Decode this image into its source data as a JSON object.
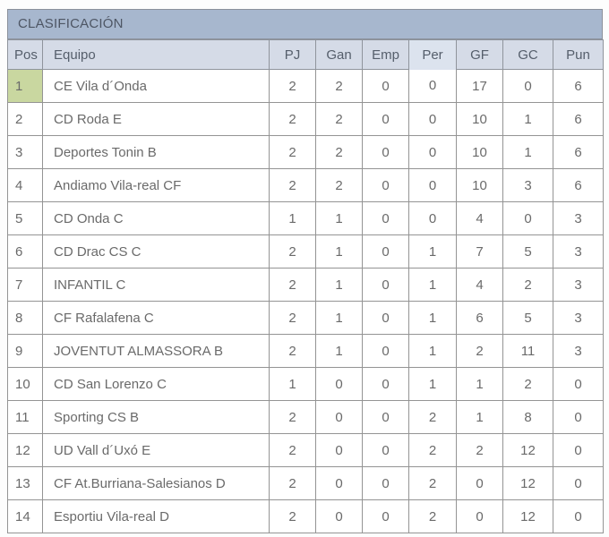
{
  "table": {
    "title": "CLASIFICACIÓN",
    "sorted_column": "per",
    "columns": [
      {
        "key": "pos",
        "label": "Pos"
      },
      {
        "key": "equipo",
        "label": "Equipo"
      },
      {
        "key": "pj",
        "label": "PJ"
      },
      {
        "key": "gan",
        "label": "Gan"
      },
      {
        "key": "emp",
        "label": "Emp"
      },
      {
        "key": "per",
        "label": "Per"
      },
      {
        "key": "gf",
        "label": "GF"
      },
      {
        "key": "gc",
        "label": "GC"
      },
      {
        "key": "pun",
        "label": "Pun"
      }
    ],
    "rows": [
      {
        "pos": 1,
        "equipo": "CE Vila d´Onda",
        "pj": 2,
        "gan": 2,
        "emp": 0,
        "per": 0,
        "gf": 17,
        "gc": 0,
        "pun": 6,
        "highlight": true
      },
      {
        "pos": 2,
        "equipo": "CD Roda E",
        "pj": 2,
        "gan": 2,
        "emp": 0,
        "per": 0,
        "gf": 10,
        "gc": 1,
        "pun": 6,
        "highlight": false
      },
      {
        "pos": 3,
        "equipo": "Deportes Tonin B",
        "pj": 2,
        "gan": 2,
        "emp": 0,
        "per": 0,
        "gf": 10,
        "gc": 1,
        "pun": 6,
        "highlight": false
      },
      {
        "pos": 4,
        "equipo": "Andiamo Vila-real CF",
        "pj": 2,
        "gan": 2,
        "emp": 0,
        "per": 0,
        "gf": 10,
        "gc": 3,
        "pun": 6,
        "highlight": false
      },
      {
        "pos": 5,
        "equipo": "CD Onda C",
        "pj": 1,
        "gan": 1,
        "emp": 0,
        "per": 0,
        "gf": 4,
        "gc": 0,
        "pun": 3,
        "highlight": false
      },
      {
        "pos": 6,
        "equipo": "CD Drac CS C",
        "pj": 2,
        "gan": 1,
        "emp": 0,
        "per": 1,
        "gf": 7,
        "gc": 5,
        "pun": 3,
        "highlight": false
      },
      {
        "pos": 7,
        "equipo": "INFANTIL C",
        "pj": 2,
        "gan": 1,
        "emp": 0,
        "per": 1,
        "gf": 4,
        "gc": 2,
        "pun": 3,
        "highlight": false
      },
      {
        "pos": 8,
        "equipo": "CF Rafalafena C",
        "pj": 2,
        "gan": 1,
        "emp": 0,
        "per": 1,
        "gf": 6,
        "gc": 5,
        "pun": 3,
        "highlight": false
      },
      {
        "pos": 9,
        "equipo": "JOVENTUT ALMASSORA B",
        "pj": 2,
        "gan": 1,
        "emp": 0,
        "per": 1,
        "gf": 2,
        "gc": 11,
        "pun": 3,
        "highlight": false
      },
      {
        "pos": 10,
        "equipo": "CD San Lorenzo C",
        "pj": 1,
        "gan": 0,
        "emp": 0,
        "per": 1,
        "gf": 1,
        "gc": 2,
        "pun": 0,
        "highlight": false
      },
      {
        "pos": 11,
        "equipo": "Sporting CS B",
        "pj": 2,
        "gan": 0,
        "emp": 0,
        "per": 2,
        "gf": 1,
        "gc": 8,
        "pun": 0,
        "highlight": false
      },
      {
        "pos": 12,
        "equipo": "UD Vall d´Uxó E",
        "pj": 2,
        "gan": 0,
        "emp": 0,
        "per": 2,
        "gf": 2,
        "gc": 12,
        "pun": 0,
        "highlight": false
      },
      {
        "pos": 13,
        "equipo": "CF At.Burriana-Salesianos D",
        "pj": 2,
        "gan": 0,
        "emp": 0,
        "per": 2,
        "gf": 0,
        "gc": 12,
        "pun": 0,
        "highlight": false
      },
      {
        "pos": 14,
        "equipo": "Esportiu Vila-real D",
        "pj": 2,
        "gan": 0,
        "emp": 0,
        "per": 2,
        "gf": 0,
        "gc": 12,
        "pun": 0,
        "highlight": false
      }
    ],
    "colors": {
      "title_bg": "#a7b7ce",
      "header_bg": "#d5dbe7",
      "sorted_header_bg": "#dce3ee",
      "promotion_green": "#c9d7a0",
      "border": "#949494",
      "text": "#6a6a6a"
    }
  }
}
